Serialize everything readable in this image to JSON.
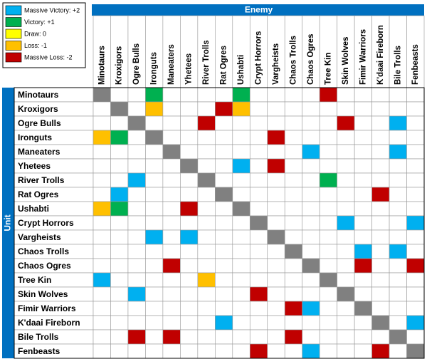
{
  "legend": [
    {
      "label": "Massive Victory: +2",
      "value": 2,
      "color": "#00b0f0"
    },
    {
      "label": "Victory: +1",
      "value": 1,
      "color": "#00b050"
    },
    {
      "label": "Draw: 0",
      "value": 0,
      "color": "#ffff00"
    },
    {
      "label": "Loss: -1",
      "value": -1,
      "color": "#ffc000"
    },
    {
      "label": "Massive Loss: -2",
      "value": -2,
      "color": "#c00000"
    }
  ],
  "header_color": "#0070c0",
  "self_color": "#808080",
  "column_title": "Enemy",
  "row_title": "Unit",
  "columns": [
    "Minotaurs",
    "Kroxigors",
    "Ogre Bulls",
    "Ironguts",
    "Maneaters",
    "Yhetees",
    "River Trolls",
    "Rat Ogres",
    "Ushabti",
    "Crypt Horrors",
    "Vargheists",
    "Chaos Trolls",
    "Chaos Ogres",
    "Tree Kin",
    "Skin Wolves",
    "Fimir Warriors",
    "K'daai Fireborn",
    "Bile Trolls",
    "Fenbeasts"
  ],
  "rows": [
    "Minotaurs",
    "Kroxigors",
    "Ogre Bulls",
    "Ironguts",
    "Maneaters",
    "Yhetees",
    "River Trolls",
    "Rat Ogres",
    "Ushabti",
    "Crypt Horrors",
    "Vargheists",
    "Chaos Trolls",
    "Chaos Ogres",
    "Tree Kin",
    "Skin Wolves",
    "Fimir Warriors",
    "K'daai Fireborn",
    "Bile Trolls",
    "Fenbeasts"
  ],
  "matrix": [
    [
      null,
      null,
      null,
      1,
      null,
      null,
      null,
      null,
      1,
      null,
      null,
      null,
      null,
      -2,
      null,
      null,
      null,
      null,
      null
    ],
    [
      null,
      null,
      null,
      -1,
      null,
      null,
      null,
      -2,
      -1,
      null,
      null,
      null,
      null,
      null,
      null,
      null,
      null,
      null,
      null
    ],
    [
      null,
      null,
      null,
      null,
      null,
      null,
      -2,
      null,
      null,
      null,
      null,
      null,
      null,
      null,
      -2,
      null,
      null,
      2,
      null
    ],
    [
      -1,
      1,
      null,
      null,
      null,
      null,
      null,
      null,
      null,
      null,
      -2,
      null,
      null,
      null,
      null,
      null,
      null,
      null,
      null
    ],
    [
      null,
      null,
      null,
      null,
      null,
      null,
      null,
      null,
      null,
      null,
      null,
      null,
      2,
      null,
      null,
      null,
      null,
      2,
      null
    ],
    [
      null,
      null,
      null,
      null,
      null,
      null,
      null,
      null,
      2,
      null,
      -2,
      null,
      null,
      null,
      null,
      null,
      null,
      null,
      null
    ],
    [
      null,
      null,
      2,
      null,
      null,
      null,
      null,
      null,
      null,
      null,
      null,
      null,
      null,
      1,
      null,
      null,
      null,
      null,
      null
    ],
    [
      null,
      2,
      null,
      null,
      null,
      null,
      null,
      null,
      null,
      null,
      null,
      null,
      null,
      null,
      null,
      null,
      -2,
      null,
      null
    ],
    [
      -1,
      1,
      null,
      null,
      null,
      -2,
      null,
      null,
      null,
      null,
      null,
      null,
      null,
      null,
      null,
      null,
      null,
      null,
      null
    ],
    [
      null,
      null,
      null,
      null,
      null,
      null,
      null,
      null,
      null,
      null,
      null,
      null,
      null,
      null,
      2,
      null,
      null,
      null,
      2
    ],
    [
      null,
      null,
      null,
      2,
      null,
      2,
      null,
      null,
      null,
      null,
      null,
      null,
      null,
      null,
      null,
      null,
      null,
      null,
      null
    ],
    [
      null,
      null,
      null,
      null,
      null,
      null,
      null,
      null,
      null,
      null,
      null,
      null,
      null,
      null,
      null,
      2,
      null,
      2,
      null
    ],
    [
      null,
      null,
      null,
      null,
      -2,
      null,
      null,
      null,
      null,
      null,
      null,
      null,
      null,
      null,
      null,
      -2,
      null,
      null,
      -2
    ],
    [
      2,
      null,
      null,
      null,
      null,
      null,
      -1,
      null,
      null,
      null,
      null,
      null,
      null,
      null,
      null,
      null,
      null,
      null,
      null
    ],
    [
      null,
      null,
      2,
      null,
      null,
      null,
      null,
      null,
      null,
      -2,
      null,
      null,
      null,
      null,
      null,
      null,
      null,
      null,
      null
    ],
    [
      null,
      null,
      null,
      null,
      null,
      null,
      null,
      null,
      null,
      null,
      null,
      -2,
      2,
      null,
      null,
      null,
      null,
      null,
      null
    ],
    [
      null,
      null,
      null,
      null,
      null,
      null,
      null,
      2,
      null,
      null,
      null,
      null,
      null,
      null,
      null,
      null,
      null,
      null,
      2
    ],
    [
      null,
      null,
      -2,
      null,
      -2,
      null,
      null,
      null,
      null,
      null,
      null,
      -2,
      null,
      null,
      null,
      null,
      null,
      null,
      null
    ],
    [
      null,
      null,
      null,
      null,
      null,
      null,
      null,
      null,
      null,
      -2,
      null,
      null,
      2,
      null,
      null,
      null,
      -2,
      null,
      null
    ]
  ]
}
